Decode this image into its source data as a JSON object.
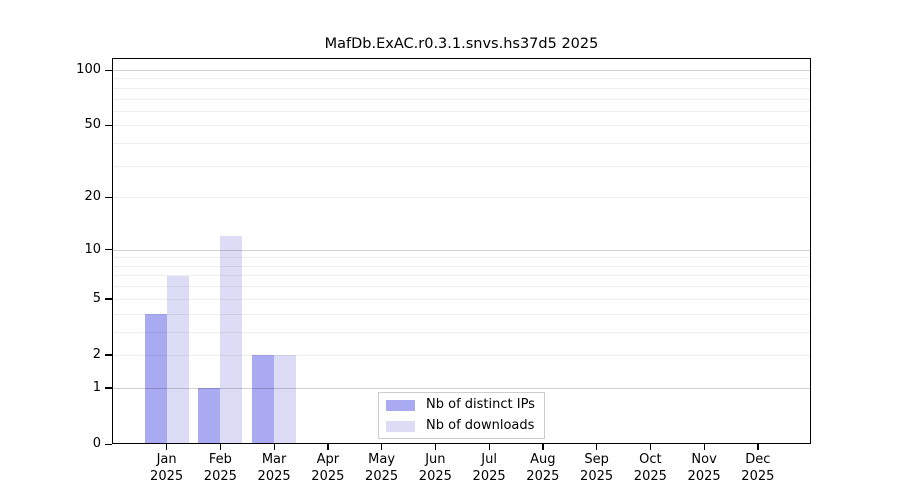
{
  "chart_data": {
    "type": "bar",
    "title": "MafDb.ExAC.r0.3.1.snvs.hs37d5 2025",
    "year_label": "2025",
    "categories": [
      "Jan",
      "Feb",
      "Mar",
      "Apr",
      "May",
      "Jun",
      "Jul",
      "Aug",
      "Sep",
      "Oct",
      "Nov",
      "Dec"
    ],
    "series": [
      {
        "name": "Nb of distinct IPs",
        "color": "#a9aaf2",
        "values": [
          4,
          1,
          2,
          0,
          0,
          0,
          0,
          0,
          0,
          0,
          0,
          0
        ]
      },
      {
        "name": "Nb of downloads",
        "color": "#dcdcf7",
        "values": [
          7,
          12,
          2,
          0,
          0,
          0,
          0,
          0,
          0,
          0,
          0,
          0
        ]
      }
    ],
    "xlabel": "",
    "ylabel": "",
    "yscale": "log1p",
    "ylim": [
      0,
      117
    ],
    "yticks": [
      0,
      1,
      2,
      5,
      10,
      20,
      50,
      100
    ],
    "gridlines_major": [
      1,
      10,
      100
    ],
    "gridlines_minor": [
      2,
      3,
      4,
      5,
      6,
      7,
      8,
      9,
      20,
      30,
      40,
      50,
      60,
      70,
      80,
      90
    ],
    "grid": true,
    "legend_position": "lower center"
  },
  "colors": {
    "axis": "#000000",
    "grid_major": "rgba(0,0,0,0.18)",
    "grid_minor": "rgba(0,0,0,0.065)",
    "legend_border": "#cccccc",
    "text": "#000000",
    "background": "#ffffff"
  }
}
